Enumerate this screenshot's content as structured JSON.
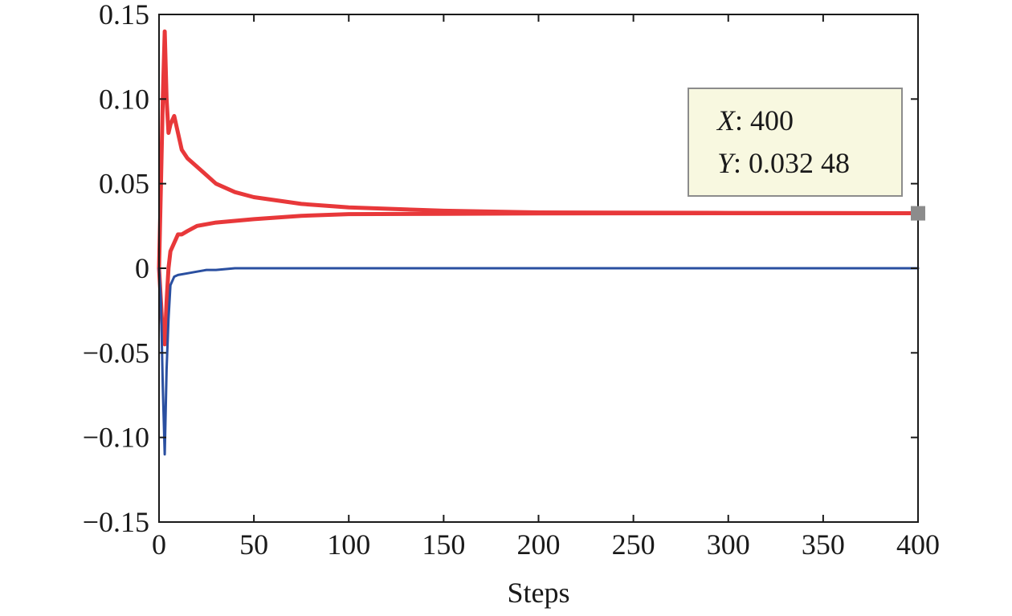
{
  "chart_data": {
    "type": "line",
    "title": "",
    "xlabel": "Steps",
    "ylabel": "",
    "xlim": [
      0,
      400
    ],
    "ylim": [
      -0.15,
      0.15
    ],
    "xticks": [
      "0",
      "50",
      "100",
      "150",
      "200",
      "250",
      "300",
      "350",
      "400"
    ],
    "yticks": [
      "0.15",
      "0.10",
      "0.05",
      "0",
      "−0.05",
      "−0.10",
      "−0.15"
    ],
    "grid": false,
    "colors": {
      "upper": "#e8383a",
      "lower": "#2a4fa0",
      "tooltip_bg": "#f8f8e0",
      "tooltip_border": "#8c8c8c",
      "marker": "#8c8c8c"
    },
    "series": [
      {
        "color": "#e8383a",
        "x": [
          0,
          1,
          2,
          3,
          4,
          5,
          6,
          8,
          10,
          12,
          15,
          20,
          25,
          30,
          40,
          50,
          75,
          100,
          150,
          200,
          300,
          400
        ],
        "y": [
          0,
          0.05,
          0.1,
          0.14,
          0.1,
          0.08,
          0.085,
          0.09,
          0.08,
          0.07,
          0.065,
          0.06,
          0.055,
          0.05,
          0.045,
          0.042,
          0.038,
          0.036,
          0.034,
          0.033,
          0.0327,
          0.0325
        ]
      },
      {
        "color": "#e8383a",
        "x": [
          0,
          1,
          2,
          3,
          4,
          5,
          6,
          8,
          10,
          12,
          15,
          20,
          25,
          30,
          40,
          50,
          75,
          100,
          150,
          200,
          300,
          400
        ],
        "y": [
          0,
          -0.02,
          -0.04,
          -0.045,
          -0.02,
          0.0,
          0.01,
          0.015,
          0.02,
          0.02,
          0.022,
          0.025,
          0.026,
          0.027,
          0.028,
          0.029,
          0.031,
          0.032,
          0.0322,
          0.0324,
          0.0325,
          0.0325
        ]
      },
      {
        "color": "#2a4fa0",
        "x": [
          0,
          1,
          2,
          3,
          4,
          5,
          6,
          8,
          10,
          15,
          20,
          25,
          30,
          40,
          50,
          75,
          100,
          200,
          300,
          400
        ],
        "y": [
          0,
          -0.02,
          -0.07,
          -0.11,
          -0.06,
          -0.03,
          -0.01,
          -0.005,
          -0.004,
          -0.003,
          -0.002,
          -0.001,
          -0.001,
          0.0,
          0.0,
          0.0,
          0.0,
          0.0,
          0.0,
          0.0
        ]
      }
    ],
    "datatip": {
      "x_label": "X",
      "x_value": "400",
      "y_label": "Y",
      "y_value": "0.032 48",
      "point": [
        400,
        0.03248
      ]
    }
  }
}
